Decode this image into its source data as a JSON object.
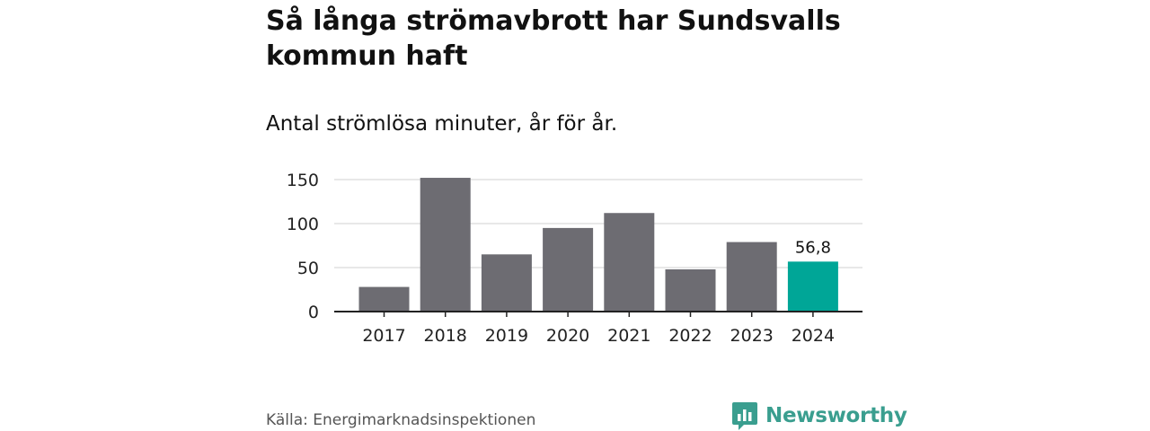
{
  "title": "Så långa strömavbrott har Sundsvalls kommun haft",
  "subtitle": "Antal strömlösa minuter, år för år.",
  "source": "Källa: Energimarknadsinspektionen",
  "brand": "Newsworthy",
  "colors": {
    "bar": "#6d6c72",
    "highlight": "#00a697",
    "grid": "#d9d9d9",
    "axis": "#222222",
    "brand": "#3a9e8f"
  },
  "chart_data": {
    "type": "bar",
    "title": "Så långa strömavbrott har Sundsvalls kommun haft",
    "subtitle": "Antal strömlösa minuter, år för år.",
    "categories": [
      "2017",
      "2018",
      "2019",
      "2020",
      "2021",
      "2022",
      "2023",
      "2024"
    ],
    "values": [
      28,
      152,
      65,
      95,
      112,
      48,
      79,
      56.8
    ],
    "highlight_index": 7,
    "data_labels": [
      {
        "index": 7,
        "text": "56,8"
      }
    ],
    "yticks": [
      0,
      50,
      100,
      150
    ],
    "ylim": [
      0,
      155
    ],
    "xlabel": "",
    "ylabel": "",
    "grid": true
  }
}
